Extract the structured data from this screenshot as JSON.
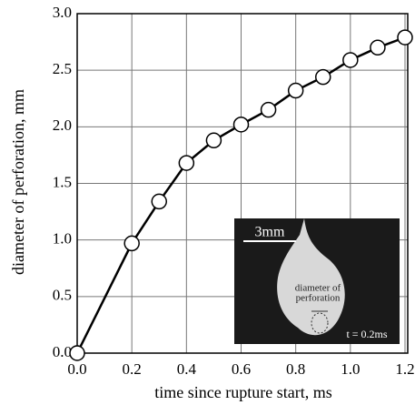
{
  "chart_data": {
    "type": "line",
    "x_label": "time since rupture start, ms",
    "y_label": "diameter of perforation, mm",
    "x": [
      0,
      0.2,
      0.3,
      0.4,
      0.5,
      0.6,
      0.7,
      0.8,
      0.9,
      1.0,
      1.1,
      1.2
    ],
    "series": [
      {
        "color": "#000000",
        "values": [
          0,
          0.97,
          1.34,
          1.68,
          1.88,
          2.02,
          2.15,
          2.32,
          2.44,
          2.59,
          2.7,
          2.79
        ]
      }
    ],
    "xlim": [
      0,
      1.2
    ],
    "ylim": [
      0,
      3
    ],
    "xticks": [
      {
        "value": 0,
        "label": "0.0"
      },
      0.2,
      0.4,
      0.6,
      0.8,
      {
        "value": 1,
        "label": "1.0"
      },
      1.2
    ],
    "yticks": [
      {
        "value": 0,
        "label": "0.0"
      },
      0.5,
      {
        "value": 1,
        "label": "1.0"
      },
      1.5,
      {
        "value": 2,
        "label": "2.0"
      },
      2.5,
      {
        "value": 3,
        "label": "3.0"
      }
    ],
    "grid": true,
    "inset": {
      "scale_bar": "3mm",
      "label_lines": [
        "diameter of",
        "perforation"
      ],
      "time": "t = 0.2ms"
    }
  }
}
